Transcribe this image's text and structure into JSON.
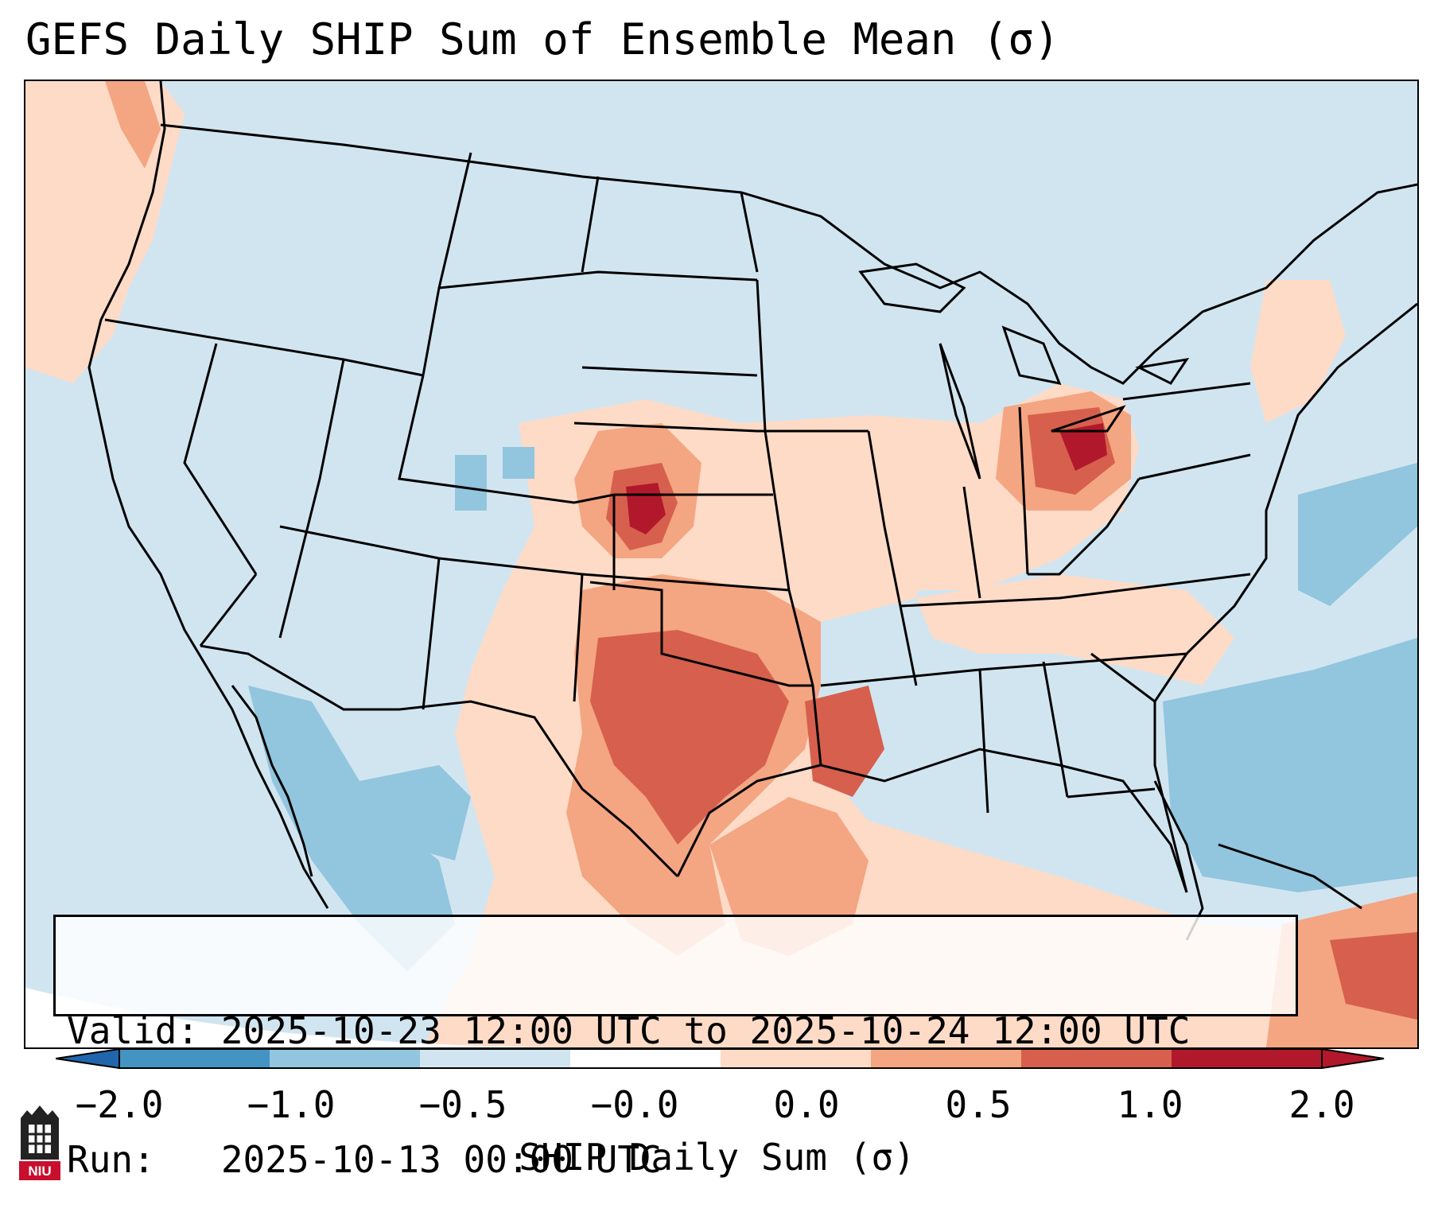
{
  "title": "GEFS Daily SHIP Sum of Ensemble Mean (σ)",
  "info": {
    "valid_line": "Valid: 2025-10-23 12:00 UTC to 2025-10-24 12:00 UTC",
    "run_line": "Run:   2025-10-13 00:00 UTC"
  },
  "colorbar": {
    "label": "SHIP Daily Sum (σ)",
    "ticks": [
      "−2.0",
      "−1.0",
      "−0.5",
      "−0.0",
      "0.0",
      "0.5",
      "1.0",
      "2.0"
    ],
    "colors": [
      "#4393c3",
      "#92c5de",
      "#d1e5f0",
      "#ffffff",
      "#fddbc7",
      "#f4a582",
      "#d6604d",
      "#b2182b"
    ],
    "under_color": "#2166ac",
    "over_color": "#b2182b"
  },
  "logo": {
    "text": "NIU",
    "icon": "niu-logo-icon"
  },
  "map": {
    "background_value": "-0.5 to 0.0",
    "features": [
      "US state borders",
      "coastlines",
      "Great Lakes",
      "Mexico",
      "Canada",
      "Caribbean"
    ]
  }
}
